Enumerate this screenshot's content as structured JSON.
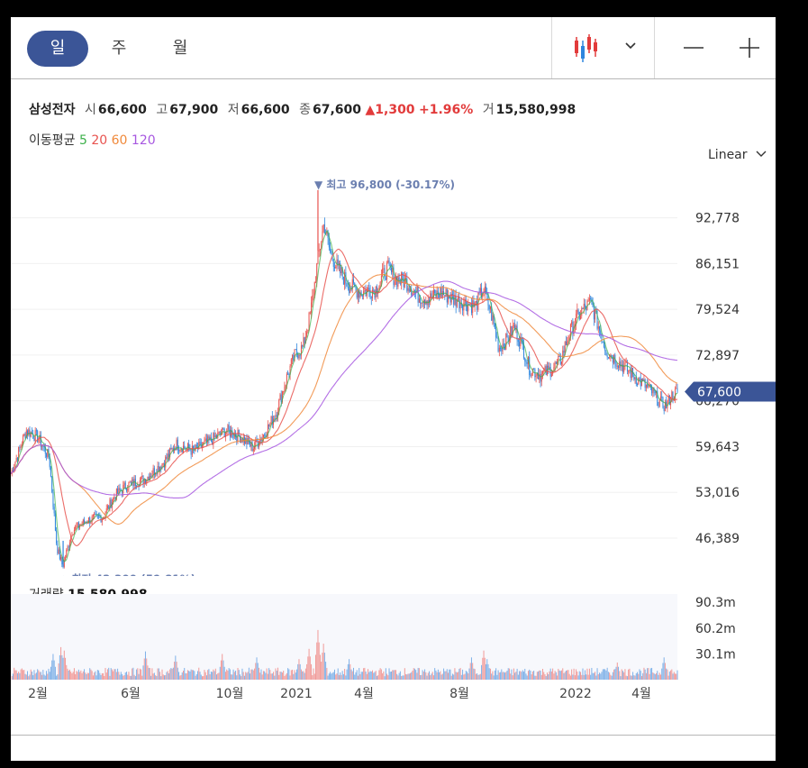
{
  "tabs": [
    {
      "label": "일",
      "active": true
    },
    {
      "label": "주",
      "active": false
    },
    {
      "label": "월",
      "active": false
    }
  ],
  "stock": {
    "name": "삼성전자",
    "open_label": "시",
    "open": "66,600",
    "high_label": "고",
    "high": "67,900",
    "low_label": "저",
    "low": "66,600",
    "close_label": "종",
    "close": "67,600",
    "change_arrow": "▲",
    "change": "1,300",
    "change_pct": "+1.96%",
    "volume_label": "거",
    "volume": "15,580,998"
  },
  "ma": {
    "label": "이동평균",
    "periods": [
      {
        "p": "5",
        "color": "#3cb04a"
      },
      {
        "p": "20",
        "color": "#e8534f"
      },
      {
        "p": "60",
        "color": "#f08a3c"
      },
      {
        "p": "120",
        "color": "#a757e0"
      }
    ]
  },
  "scale": {
    "label": "Linear"
  },
  "chart_data": {
    "type": "line",
    "subtype": "candlestick",
    "y_ticks": [
      46389,
      53016,
      59643,
      66270,
      72897,
      79524,
      86151,
      92778
    ],
    "y_tick_labels": [
      "46,389",
      "53,016",
      "59,643",
      "66,270",
      "72,897",
      "79,524",
      "86,151",
      "92,778"
    ],
    "ylim": [
      40900,
      99000
    ],
    "x_tick_labels": [
      "2월",
      "6월",
      "10월",
      "2021",
      "4월",
      "8월",
      "2022",
      "4월"
    ],
    "last_price": 67600,
    "last_price_label": "67,600",
    "high_marker": {
      "value": 96800,
      "text": "▼ 최고 96,800 (-30.17%)"
    },
    "low_marker": {
      "value": 42300,
      "text": "▲ 최저 42,300 (59.81%)"
    },
    "close_path": [
      [
        0,
        55700
      ],
      [
        8,
        62000
      ],
      [
        14,
        61000
      ],
      [
        20,
        58000
      ],
      [
        24,
        45000
      ],
      [
        27,
        42300
      ],
      [
        32,
        47500
      ],
      [
        40,
        49000
      ],
      [
        48,
        49500
      ],
      [
        54,
        52500
      ],
      [
        60,
        54000
      ],
      [
        70,
        55000
      ],
      [
        80,
        57500
      ],
      [
        86,
        60000
      ],
      [
        95,
        59000
      ],
      [
        104,
        60500
      ],
      [
        112,
        62000
      ],
      [
        120,
        61000
      ],
      [
        126,
        59500
      ],
      [
        132,
        61500
      ],
      [
        138,
        64500
      ],
      [
        144,
        70000
      ],
      [
        148,
        73000
      ],
      [
        152,
        74000
      ],
      [
        156,
        79000
      ],
      [
        160,
        87000
      ],
      [
        163,
        92000
      ],
      [
        166,
        88000
      ],
      [
        170,
        85500
      ],
      [
        176,
        83000
      ],
      [
        182,
        82000
      ],
      [
        190,
        82500
      ],
      [
        196,
        85500
      ],
      [
        200,
        84000
      ],
      [
        206,
        83500
      ],
      [
        212,
        81500
      ],
      [
        218,
        81000
      ],
      [
        224,
        82000
      ],
      [
        230,
        81000
      ],
      [
        236,
        80500
      ],
      [
        242,
        80000
      ],
      [
        246,
        82500
      ],
      [
        250,
        79000
      ],
      [
        254,
        74000
      ],
      [
        258,
        75000
      ],
      [
        262,
        77000
      ],
      [
        266,
        74500
      ],
      [
        270,
        71000
      ],
      [
        276,
        70000
      ],
      [
        282,
        71000
      ],
      [
        286,
        72000
      ],
      [
        290,
        75500
      ],
      [
        294,
        78000
      ],
      [
        298,
        79500
      ],
      [
        302,
        80500
      ],
      [
        306,
        77000
      ],
      [
        310,
        73500
      ],
      [
        316,
        72000
      ],
      [
        322,
        70500
      ],
      [
        328,
        69000
      ],
      [
        334,
        67500
      ],
      [
        338,
        66000
      ],
      [
        341,
        65500
      ],
      [
        344,
        67000
      ],
      [
        347,
        67600
      ]
    ],
    "series": [
      {
        "name": "5",
        "color": "#3cb04a"
      },
      {
        "name": "20",
        "color": "#e8534f"
      },
      {
        "name": "60",
        "color": "#f08a3c"
      },
      {
        "name": "120",
        "color": "#a757e0"
      }
    ],
    "volume": {
      "label": "거래량",
      "last": "15,580,998",
      "y_tick_labels": [
        "90.3m",
        "60.2m",
        "30.1m"
      ],
      "y_ticks": [
        90.3,
        60.2,
        30.1
      ],
      "ylim": [
        0,
        100
      ],
      "spikes": [
        [
          22,
          30
        ],
        [
          26,
          38
        ],
        [
          28,
          34
        ],
        [
          70,
          33
        ],
        [
          86,
          28
        ],
        [
          110,
          30
        ],
        [
          128,
          26
        ],
        [
          150,
          24
        ],
        [
          155,
          36
        ],
        [
          160,
          58
        ],
        [
          163,
          42
        ],
        [
          176,
          24
        ],
        [
          240,
          26
        ],
        [
          246,
          34
        ],
        [
          248,
          24
        ],
        [
          316,
          20
        ],
        [
          340,
          26
        ]
      ]
    }
  }
}
